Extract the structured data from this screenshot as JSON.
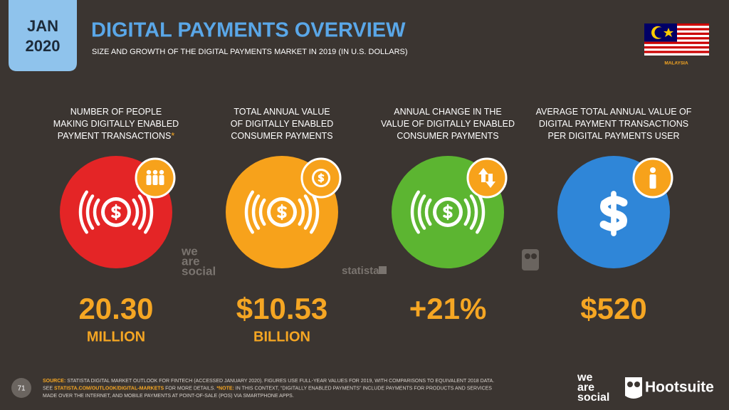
{
  "header": {
    "date_month": "JAN",
    "date_year": "2020",
    "title": "DIGITAL PAYMENTS OVERVIEW",
    "subtitle": "SIZE AND GROWTH OF THE DIGITAL PAYMENTS MARKET IN 2019 (IN U.S. DOLLARS)",
    "country": "MALAYSIA"
  },
  "stats": [
    {
      "label_lines": [
        "NUMBER OF PEOPLE",
        "MAKING DIGITALLY ENABLED",
        "PAYMENT TRANSACTIONS"
      ],
      "label_mark": "*",
      "value": "20.30",
      "unit": "MILLION",
      "color": "#e42526"
    },
    {
      "label_lines": [
        "TOTAL ANNUAL VALUE",
        "OF DIGITALLY ENABLED",
        "CONSUMER PAYMENTS"
      ],
      "value": "$10.53",
      "unit": "BILLION",
      "color": "#f7a21b"
    },
    {
      "label_lines": [
        "ANNUAL CHANGE IN THE",
        "VALUE OF DIGITALLY ENABLED",
        "CONSUMER PAYMENTS"
      ],
      "value": "+21%",
      "color": "#5cb531"
    },
    {
      "label_lines": [
        "AVERAGE TOTAL ANNUAL VALUE OF",
        "DIGITAL PAYMENT TRANSACTIONS",
        "PER DIGITAL PAYMENTS USER"
      ],
      "value": "$520",
      "color": "#2f86d8"
    }
  ],
  "watermarks": {
    "we_are_social": [
      "we",
      "are",
      "social"
    ],
    "statista": "statista"
  },
  "footer": {
    "page": "71",
    "source_lines": [
      [
        {
          "text": "SOURCE:",
          "highlight": true
        },
        {
          "text": " STATISTA DIGITAL MARKET OUTLOOK FOR FINTECH (ACCESSED JANUARY 2020). FIGURES USE FULL-YEAR VALUES FOR 2019, WITH COMPARISONS TO EQUIVALENT 2018 DATA."
        }
      ],
      [
        {
          "text": "SEE "
        },
        {
          "text": "STATISTA.COM/OUTLOOK/DIGITAL-MARKETS",
          "highlight": true
        },
        {
          "text": " FOR MORE DETAILS. "
        },
        {
          "text": "*NOTE:",
          "highlight": true
        },
        {
          "text": " IN THIS CONTEXT, “DIGITALLY ENABLED PAYMENTS” INCLUDE PAYMENTS FOR PRODUCTS AND SERVICES"
        }
      ],
      [
        {
          "text": "MADE OVER THE INTERNET, AND MOBILE PAYMENTS AT POINT-OF-SALE (POS) VIA SMARTPHONE APPS."
        }
      ]
    ],
    "logo_we_are_social": [
      "we",
      "are",
      "social"
    ],
    "logo_hootsuite": "Hootsuite"
  }
}
